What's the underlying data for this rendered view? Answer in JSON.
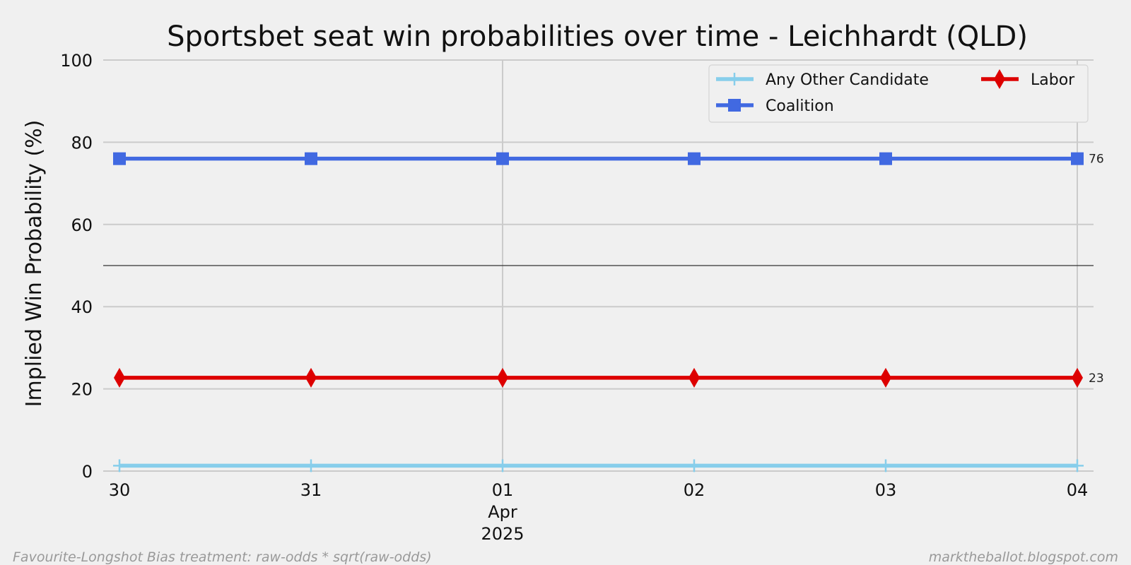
{
  "chart_data": {
    "type": "line",
    "title": "Sportsbet seat win probabilities over time - Leichhardt (QLD)",
    "xlabel": "",
    "ylabel": "Implied Win Probability (%)",
    "ylim": [
      0,
      100
    ],
    "yticks": [
      0,
      20,
      40,
      60,
      80,
      100
    ],
    "x": [
      "2025-03-30",
      "2025-03-31",
      "2025-04-01",
      "2025-04-02",
      "2025-04-03",
      "2025-04-04"
    ],
    "xtick_labels": [
      "30",
      "31",
      "01",
      "02",
      "03",
      "04"
    ],
    "x_month_label": "Apr",
    "x_year_label": "2025",
    "reference_line_y": 50,
    "grid": true,
    "legend_position": "top-right",
    "series": [
      {
        "name": "Any Other Candidate",
        "color": "#87ceeb",
        "marker": "plus",
        "values": [
          1.3,
          1.3,
          1.3,
          1.3,
          1.3,
          1.3
        ]
      },
      {
        "name": "Coalition",
        "color": "#4169e1",
        "marker": "square",
        "values": [
          76,
          76,
          76,
          76,
          76,
          76
        ],
        "end_label": "76"
      },
      {
        "name": "Labor",
        "color": "#dd0000",
        "marker": "diamond",
        "values": [
          22.7,
          22.7,
          22.7,
          22.7,
          22.7,
          22.7
        ],
        "end_label": "23"
      }
    ]
  },
  "footer": {
    "left": "Favourite-Longshot Bias treatment: raw-odds * sqrt(raw-odds)",
    "right": "marktheballot.blogspot.com"
  }
}
